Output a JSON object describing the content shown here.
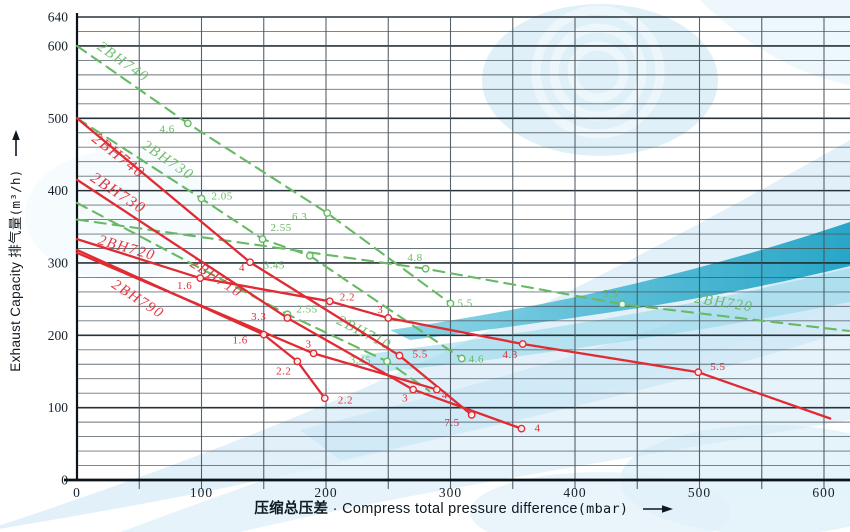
{
  "axis_titles": {
    "x_cn": "压缩总压差",
    "x_sep": "·",
    "x_en": "Compress total pressure difference",
    "x_unit": "(mbar)",
    "y_en": "Exhaust Capacity",
    "y_cn": "排气量",
    "y_unit": "(m³/h)"
  },
  "chart_data": {
    "type": "line",
    "title": "",
    "xlabel": "压缩总压差·Compress total pressure difference(mbar)",
    "ylabel": "Exhaust Capacity 排气量(m³/h)",
    "xlim": [
      0,
      620
    ],
    "ylim": [
      0,
      640
    ],
    "x_ticks": [
      0,
      100,
      200,
      300,
      400,
      500,
      600
    ],
    "y_ticks": [
      0,
      100,
      200,
      300,
      400,
      500,
      600,
      640
    ],
    "x_grid_step": 50,
    "y_grid_step": 20,
    "grid": true,
    "legend_position": "none",
    "styles_note": "solid red = compression curves, dashed green = companion curves; small numbers are motor power ratings (kW)",
    "colors": {
      "red_series": "#e12b33",
      "green_series": "#68b964",
      "grid_minor": "#46525b",
      "grid_major": "#1d2830",
      "axis": "#0c1219",
      "tick_text": "#15202a"
    },
    "series": [
      {
        "name": "2BH740",
        "style": "solid",
        "color": "#e12b33",
        "width": 2.3,
        "points": [
          {
            "p": 0,
            "c": 500
          },
          {
            "p": 139,
            "c": 301,
            "label": "4",
            "dx": -5,
            "dy": 9
          },
          {
            "p": 259,
            "c": 172,
            "label": "5.5",
            "dx": 13,
            "dy": 2
          },
          {
            "p": 317,
            "c": 90,
            "label": "7.5",
            "dx": -12,
            "dy": 11
          }
        ],
        "name_label": {
          "p": 31,
          "c": 443,
          "angle": 38,
          "size": 16
        }
      },
      {
        "name": "2BH730",
        "style": "solid",
        "color": "#e12b33",
        "width": 2.3,
        "points": [
          {
            "p": 0,
            "c": 415
          },
          {
            "p": 169,
            "c": 224,
            "label": "3.3",
            "dx": -21,
            "dy": 2
          },
          {
            "p": 270,
            "c": 125,
            "label": "3",
            "dx": -5,
            "dy": 12
          },
          {
            "p": 357,
            "c": 71,
            "label": "4",
            "dx": 13,
            "dy": 3
          }
        ],
        "name_label": {
          "p": 31,
          "c": 391,
          "angle": 33,
          "size": 16
        }
      },
      {
        "name": "2BH720",
        "style": "solid",
        "color": "#e12b33",
        "width": 2.3,
        "points": [
          {
            "p": 0,
            "c": 333
          },
          {
            "p": 99,
            "c": 279,
            "label": "1.6",
            "dx": -8,
            "dy": 11
          },
          {
            "p": 203,
            "c": 247,
            "label": "2.2",
            "dx": 10,
            "dy": -1
          },
          {
            "p": 250,
            "c": 224,
            "label": "3",
            "dx": -5,
            "dy": -5
          },
          {
            "p": 358,
            "c": 188,
            "label": "4.3",
            "dx": -5,
            "dy": 14
          },
          {
            "p": 499,
            "c": 149,
            "label": "5.5",
            "dx": 12,
            "dy": -2
          },
          {
            "p": 605,
            "c": 85
          }
        ],
        "name_label": {
          "p": 39,
          "c": 315,
          "angle": 16,
          "size": 15
        }
      },
      {
        "name": "2BH790",
        "style": "solid",
        "color": "#e12b33",
        "width": 2.3,
        "points": [
          {
            "p": 0,
            "c": 314
          },
          {
            "p": 190,
            "c": 175,
            "label": "3",
            "dx": -2,
            "dy": -6
          },
          {
            "p": 289,
            "c": 125,
            "label": "4",
            "dx": 5,
            "dy": 9
          }
        ],
        "name_label": {
          "p": 47,
          "c": 245,
          "angle": 33,
          "size": 15
        }
      },
      {
        "name": "2BH710",
        "style": "solid",
        "color": "#e12b33",
        "width": 2.3,
        "points": [
          {
            "p": 0,
            "c": 318
          },
          {
            "p": 150,
            "c": 201,
            "label": "1.6",
            "dx": -16,
            "dy": 9
          },
          {
            "p": 177,
            "c": 164,
            "label": "2.2",
            "dx": -6,
            "dy": 13
          },
          {
            "p": 199,
            "c": 113,
            "label": "2.2",
            "dx": 13,
            "dy": 5
          }
        ],
        "name_label": {
          "p": 110,
          "c": 274,
          "angle": 33,
          "size": 15
        }
      },
      {
        "name": "2BH740",
        "style": "dashed",
        "color": "#68b964",
        "width": 2.1,
        "points": [
          {
            "p": 0,
            "c": 600
          },
          {
            "p": 89,
            "c": 493,
            "label": "4.6",
            "dx": -13,
            "dy": 9
          },
          {
            "p": 201,
            "c": 369,
            "label": "6.3",
            "dx": -20,
            "dy": 7
          },
          {
            "p": 300,
            "c": 244,
            "label": "5.5",
            "dx": 7,
            "dy": 3
          }
        ],
        "name_label": {
          "p": 35,
          "c": 573,
          "angle": 35,
          "size": 15
        }
      },
      {
        "name": "2BH730",
        "style": "dashed",
        "color": "#68b964",
        "width": 2.1,
        "points": [
          {
            "p": 0,
            "c": 500
          },
          {
            "p": 100,
            "c": 389,
            "label": "2.05",
            "dx": 10,
            "dy": 1
          },
          {
            "p": 149,
            "c": 333,
            "label": "2.55",
            "dx": 8,
            "dy": -8
          },
          {
            "p": 187,
            "c": 310,
            "label": "3.45",
            "dx": -25,
            "dy": 13
          },
          {
            "p": 309,
            "c": 168,
            "label": "4.6",
            "dx": 7,
            "dy": 4
          }
        ],
        "name_label": {
          "p": 71,
          "c": 437,
          "angle": 34,
          "size": 15
        }
      },
      {
        "name": "2BH720",
        "style": "dashed",
        "color": "#68b964",
        "width": 2.1,
        "points": [
          {
            "p": 0,
            "c": 360
          },
          {
            "p": 280,
            "c": 292,
            "label": "4.8",
            "dx": -3,
            "dy": -8
          },
          {
            "p": 438,
            "c": 243,
            "label": "5.3",
            "dx": -4,
            "dy": -7
          },
          {
            "p": 620,
            "c": 206
          }
        ],
        "name_label": {
          "p": 519,
          "c": 239,
          "angle": 9,
          "size": 15
        }
      },
      {
        "name": "2BH710",
        "style": "dashed",
        "color": "#68b964",
        "width": 2.1,
        "points": [
          {
            "p": 0,
            "c": 383
          },
          {
            "p": 169,
            "c": 229,
            "label": "2.55",
            "dx": 9,
            "dy": -2
          },
          {
            "p": 249,
            "c": 164,
            "label": "3.45",
            "dx": -16,
            "dy": 2
          },
          {
            "p": 283,
            "c": 123
          }
        ],
        "name_label": {
          "p": 229,
          "c": 198,
          "angle": 27,
          "size": 15
        }
      }
    ]
  }
}
